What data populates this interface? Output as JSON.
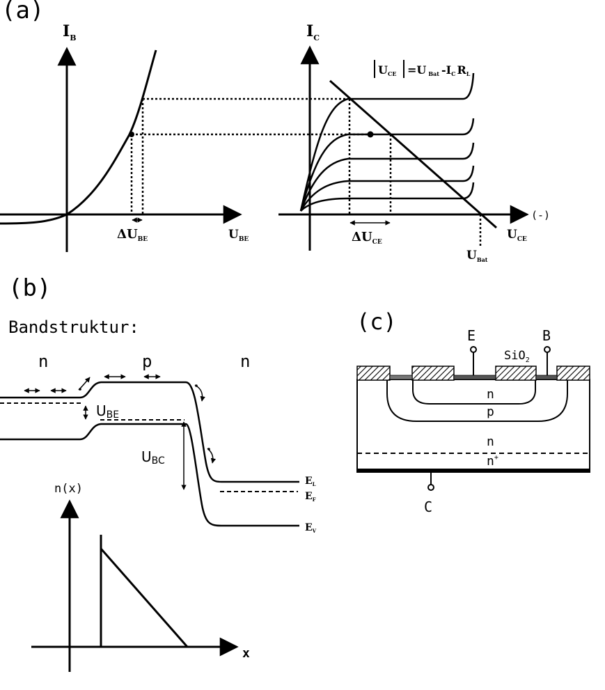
{
  "panel_a": {
    "label": "(a)",
    "left_plot": {
      "y_axis_label": "I",
      "y_axis_sub": "B",
      "x_axis_label": "U",
      "x_axis_sub": "BE",
      "delta_label": "ΔU",
      "delta_sub": "BE"
    },
    "right_plot": {
      "y_axis_label": "I",
      "y_axis_sub": "C",
      "x_axis_label": "U",
      "x_axis_sub": "CE",
      "x_axis_sign": "(-)",
      "delta_label": "ΔU",
      "delta_sub": "CE",
      "bat_label": "U",
      "bat_sub": "Bat",
      "load_line_equation": {
        "lhs": "U",
        "lhs_sub": "CE",
        "eq": "=U",
        "rhs_sub1": "Bat",
        "minus": "-I",
        "rhs_sub2": "C",
        "r": "R",
        "rhs_sub3": "L"
      }
    }
  },
  "panel_b": {
    "label": "(b)",
    "title": "Bandstruktur:",
    "regions": [
      "n",
      "p",
      "n"
    ],
    "u_be": "U",
    "u_be_sub": "BE",
    "u_bc": "U",
    "u_bc_sub": "BC",
    "levels": [
      {
        "label": "E",
        "sub": "L"
      },
      {
        "label": "E",
        "sub": "F"
      },
      {
        "label": "E",
        "sub": "V"
      }
    ],
    "nx_label": "n(x)",
    "x_label": "x"
  },
  "panel_c": {
    "label": "(c)",
    "terminal_e": "E",
    "terminal_b": "B",
    "terminal_c": "C",
    "oxide": "SiO",
    "oxide_sub": "2",
    "layers": [
      "n",
      "p",
      "n",
      "n"
    ],
    "n_plus_sup": "+"
  }
}
